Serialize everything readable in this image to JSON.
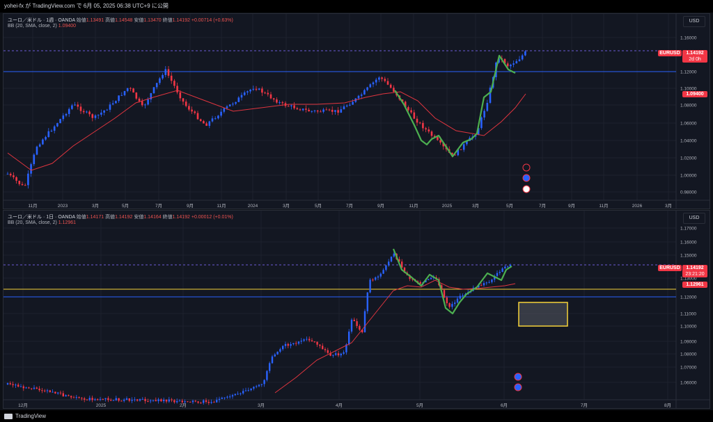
{
  "top_bar": {
    "text": "yohei-fx が TradingView.com で 6月 05, 2025 06:38 UTC+9 に公開"
  },
  "pane1": {
    "symbol": "ユーロ／米ドル · 1週 · OANDA",
    "o_label": "始値",
    "o": "1.13491",
    "h_label": "高値",
    "h": "1.14548",
    "l_label": "安値",
    "l": "1.13470",
    "c_label": "終値",
    "c": "1.14192",
    "chg": "+0.00714 (+0.63%)",
    "bb_label": "BB (20, SMA, close, 2)",
    "bb_value": "1.09400",
    "currency": "USD",
    "price_ticks": [
      "1.16000",
      "1.12000",
      "1.10000",
      "1.08000",
      "1.06000",
      "1.04000",
      "1.02000",
      "1.00000",
      "0.98000"
    ],
    "time_ticks": [
      "11月",
      "2023",
      "3月",
      "5月",
      "7月",
      "9月",
      "11月",
      "2024",
      "3月",
      "5月",
      "7月",
      "9月",
      "11月",
      "2025",
      "3月",
      "5月",
      "7月",
      "9月",
      "11月",
      "2026",
      "3月"
    ],
    "symbol_tag": "EURUSD",
    "price_tag": "1.14192",
    "countdown": "2d 0h",
    "bb_tag": "1.09400"
  },
  "pane2": {
    "symbol": "ユーロ／米ドル · 1日 · OANDA",
    "o_label": "始値",
    "o": "1.14171",
    "h_label": "高値",
    "h": "1.14192",
    "l_label": "安値",
    "l": "1.14164",
    "c_label": "終値",
    "c": "1.14192",
    "chg": "+0.00012 (+0.01%)",
    "bb_label": "BB (20, SMA, close, 2)",
    "bb_value": "1.12961",
    "currency": "USD",
    "price_ticks": [
      "1.17000",
      "1.16000",
      "1.15000",
      "1.13000",
      "1.12000",
      "1.11000",
      "1.10000",
      "1.09000",
      "1.08000",
      "1.07000",
      "1.06000"
    ],
    "time_ticks": [
      "12月",
      "2025",
      "2月",
      "3月",
      "4月",
      "5月",
      "6月",
      "7月",
      "8月"
    ],
    "symbol_tag": "EURUSD",
    "price_tag": "1.14192",
    "countdown": "23:21:20",
    "bb_tag": "1.12961"
  },
  "footer": {
    "brand": "TradingView"
  },
  "colors": {
    "up": "#2962ff",
    "down": "#f23645",
    "bb": "#e0353f",
    "green": "#4caf50",
    "hline": "#2962ff",
    "yellow": "#f7d33a"
  }
}
